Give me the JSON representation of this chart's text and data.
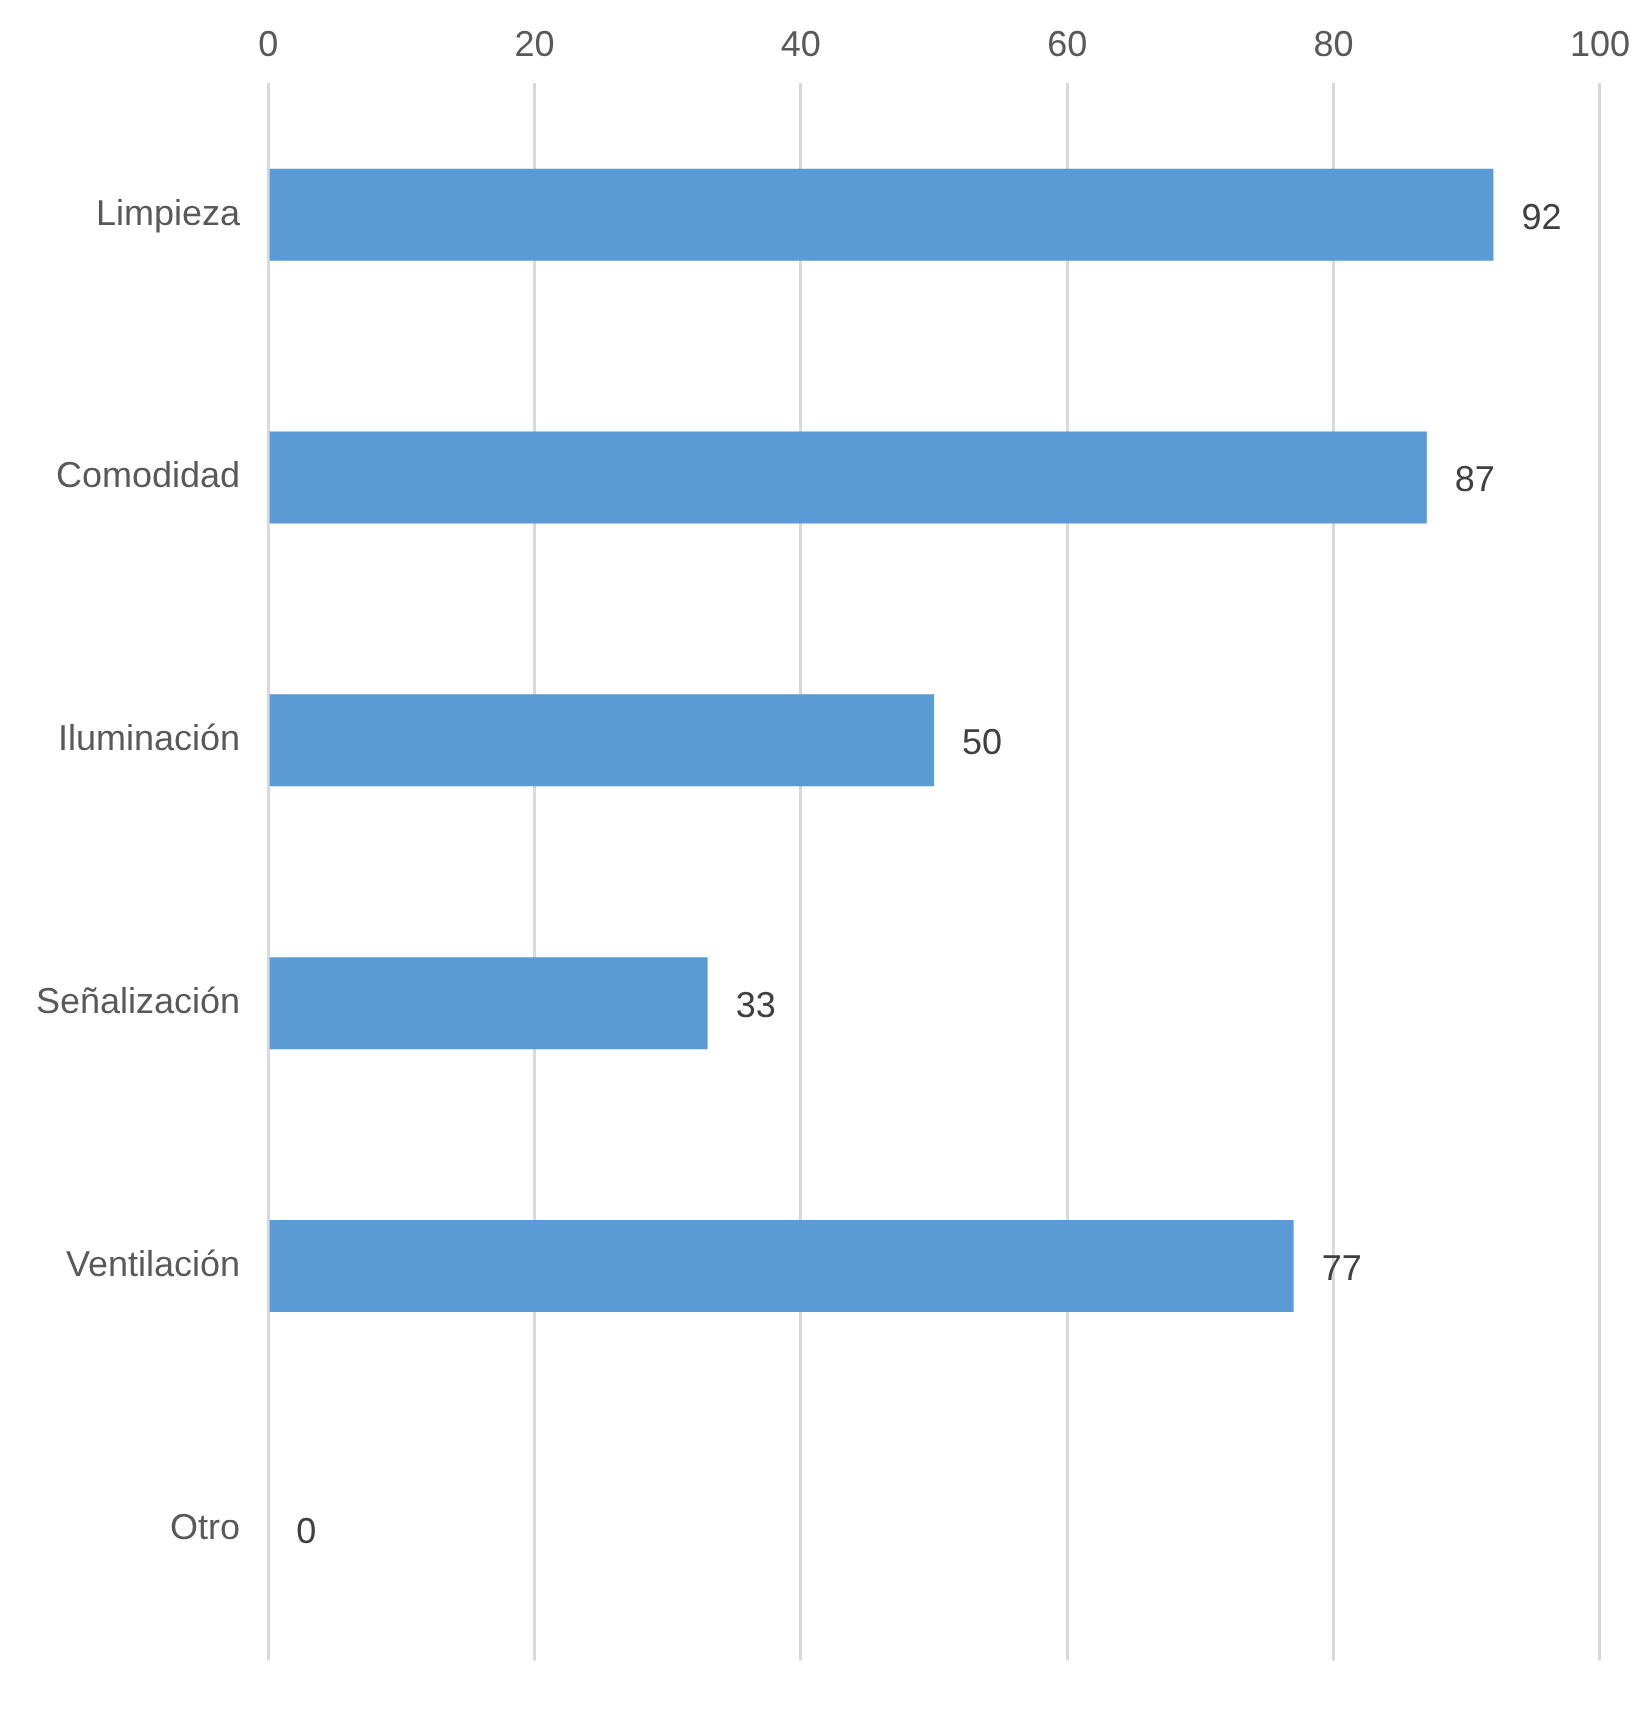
{
  "chart_data": {
    "type": "bar",
    "orientation": "horizontal",
    "categories": [
      "Limpieza",
      "Comodidad",
      "Iluminación",
      "Señalización",
      "Ventilación",
      "Otro"
    ],
    "values": [
      92,
      87,
      50,
      33,
      77,
      0
    ],
    "color": "#5b9bd5",
    "xlim": [
      0,
      100
    ],
    "xticks": [
      0,
      20,
      40,
      60,
      80,
      100
    ],
    "grid": "x",
    "data_labels": true,
    "legend": false
  }
}
